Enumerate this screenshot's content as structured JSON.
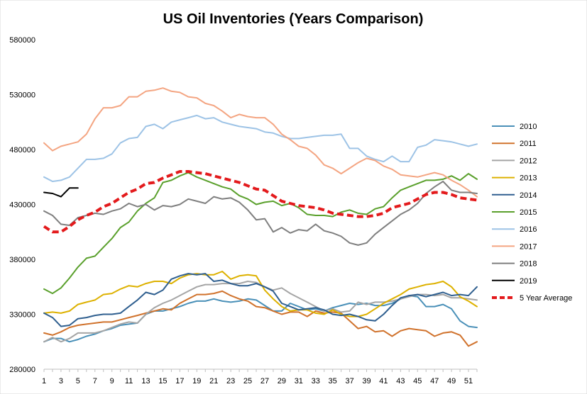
{
  "chart_data": {
    "type": "line",
    "title": "US Oil Inventories (Years Comparison)",
    "xlabel": "",
    "ylabel": "",
    "ylim": [
      280000,
      580000
    ],
    "y_ticks": [
      "280000",
      "330000",
      "380000",
      "430000",
      "480000",
      "530000",
      "580000"
    ],
    "x_ticks": [
      "1",
      "3",
      "5",
      "7",
      "9",
      "11",
      "13",
      "15",
      "17",
      "19",
      "21",
      "23",
      "25",
      "27",
      "29",
      "31",
      "33",
      "35",
      "37",
      "39",
      "41",
      "43",
      "45",
      "47",
      "49",
      "51"
    ],
    "grid": false,
    "legend_position": "right",
    "x": [
      1,
      2,
      3,
      4,
      5,
      6,
      7,
      8,
      9,
      10,
      11,
      12,
      13,
      14,
      15,
      16,
      17,
      18,
      19,
      20,
      21,
      22,
      23,
      24,
      25,
      26,
      27,
      28,
      29,
      30,
      31,
      32,
      33,
      34,
      35,
      36,
      37,
      38,
      39,
      40,
      41,
      42,
      43,
      44,
      45,
      46,
      47,
      48,
      49,
      50,
      51,
      52
    ],
    "series": [
      {
        "name": "2010",
        "color": "#4a90b8",
        "width": 2,
        "dash": false,
        "values": [
          305000,
          308000,
          308000,
          305000,
          307000,
          310000,
          312000,
          315000,
          317000,
          320000,
          321000,
          322000,
          330000,
          333000,
          333000,
          335000,
          337000,
          340000,
          342000,
          342000,
          344000,
          342000,
          341000,
          342000,
          344000,
          343000,
          338000,
          333000,
          333000,
          340000,
          337000,
          334000,
          335000,
          333000,
          336000,
          338000,
          340000,
          339000,
          340000,
          338000,
          338000,
          340000,
          344000,
          347000,
          346000,
          337000,
          337000,
          339000,
          335000,
          324000,
          319000,
          318000
        ]
      },
      {
        "name": "2011",
        "color": "#d0722c",
        "width": 2,
        "dash": false,
        "values": [
          313000,
          311000,
          314000,
          318000,
          320000,
          321000,
          322000,
          323000,
          323000,
          325000,
          327000,
          329000,
          331000,
          333000,
          335000,
          334000,
          340000,
          344000,
          348000,
          348000,
          349000,
          351000,
          347000,
          344000,
          342000,
          337000,
          336000,
          333000,
          330000,
          332000,
          332000,
          328000,
          333000,
          331000,
          332000,
          331000,
          324000,
          317000,
          319000,
          314000,
          315000,
          310000,
          315000,
          317000,
          316000,
          315000,
          310000,
          313000,
          314000,
          311000,
          301000,
          305000
        ]
      },
      {
        "name": "2012",
        "color": "#a5a5a5",
        "width": 2,
        "dash": false,
        "values": [
          305000,
          309000,
          305000,
          308000,
          313000,
          313000,
          313000,
          315000,
          318000,
          321000,
          323000,
          322000,
          330000,
          336000,
          340000,
          343000,
          347000,
          351000,
          355000,
          357000,
          357000,
          358000,
          358000,
          358000,
          360000,
          359000,
          355000,
          352000,
          354000,
          349000,
          345000,
          341000,
          337000,
          333000,
          335000,
          332000,
          333000,
          341000,
          339000,
          341000,
          341000,
          342000,
          344000,
          346000,
          348000,
          348000,
          347000,
          348000,
          345000,
          345000,
          344000,
          343000
        ]
      },
      {
        "name": "2013",
        "color": "#ddb100",
        "width": 2,
        "dash": false,
        "values": [
          331000,
          332000,
          331000,
          333000,
          339000,
          341000,
          343000,
          348000,
          349000,
          353000,
          356000,
          355000,
          358000,
          360000,
          360000,
          358000,
          363000,
          366000,
          367000,
          366000,
          366000,
          369000,
          362000,
          365000,
          366000,
          365000,
          352000,
          344000,
          337000,
          333000,
          334000,
          334000,
          331000,
          330000,
          334000,
          330000,
          328000,
          328000,
          330000,
          335000,
          340000,
          344000,
          348000,
          353000,
          355000,
          357000,
          358000,
          360000,
          355000,
          346000,
          342000,
          337000
        ]
      },
      {
        "name": "2014",
        "color": "#2f5f8f",
        "width": 2,
        "dash": false,
        "values": [
          331000,
          327000,
          319000,
          320000,
          326000,
          327000,
          329000,
          330000,
          330000,
          331000,
          337000,
          343000,
          350000,
          348000,
          352000,
          362000,
          365000,
          367000,
          366000,
          367000,
          360000,
          361000,
          358000,
          356000,
          356000,
          358000,
          355000,
          351000,
          340000,
          337000,
          334000,
          335000,
          336000,
          334000,
          330000,
          329000,
          330000,
          328000,
          325000,
          324000,
          330000,
          338000,
          345000,
          347000,
          348000,
          346000,
          348000,
          350000,
          347000,
          348000,
          347000,
          355000
        ]
      },
      {
        "name": "2015",
        "color": "#5aa02c",
        "width": 2,
        "dash": false,
        "values": [
          353000,
          349000,
          354000,
          363000,
          373000,
          381000,
          383000,
          391000,
          399000,
          409000,
          414000,
          424000,
          431000,
          436000,
          450000,
          452000,
          456000,
          459000,
          455000,
          452000,
          449000,
          446000,
          444000,
          438000,
          435000,
          430000,
          432000,
          433000,
          429000,
          431000,
          427000,
          421000,
          420000,
          420000,
          419000,
          423000,
          425000,
          422000,
          421000,
          426000,
          428000,
          436000,
          443000,
          446000,
          449000,
          452000,
          452000,
          453000,
          456000,
          452000,
          458000,
          453000
        ]
      },
      {
        "name": "2016",
        "color": "#9dc3e6",
        "width": 2,
        "dash": false,
        "values": [
          455000,
          451000,
          452000,
          455000,
          463000,
          471000,
          471000,
          472000,
          476000,
          486000,
          490000,
          491000,
          501000,
          503000,
          499000,
          505000,
          507000,
          509000,
          511000,
          508000,
          509000,
          505000,
          503000,
          501000,
          500000,
          499000,
          496000,
          495000,
          492000,
          490000,
          490000,
          491000,
          492000,
          493000,
          493000,
          494000,
          481000,
          481000,
          474000,
          471000,
          469000,
          474000,
          469000,
          469000,
          482000,
          484000,
          489000,
          488000,
          487000,
          485000,
          483000,
          485000
        ]
      },
      {
        "name": "2017",
        "color": "#f4a582",
        "width": 2,
        "dash": false,
        "values": [
          486000,
          479000,
          483000,
          485000,
          487000,
          494000,
          508000,
          518000,
          518000,
          520000,
          528000,
          528000,
          533000,
          534000,
          536000,
          533000,
          532000,
          528000,
          527000,
          522000,
          520000,
          515000,
          509000,
          512000,
          510000,
          509000,
          509000,
          503000,
          494000,
          489000,
          483000,
          481000,
          475000,
          466000,
          463000,
          458000,
          463000,
          468000,
          472000,
          470000,
          465000,
          462000,
          457000,
          456000,
          455000,
          457000,
          459000,
          457000,
          452000,
          448000,
          443000,
          437000
        ]
      },
      {
        "name": "2018",
        "color": "#7f7f7f",
        "width": 2,
        "dash": false,
        "values": [
          424000,
          420000,
          412000,
          411000,
          418000,
          420000,
          422000,
          421000,
          424000,
          426000,
          431000,
          428000,
          430000,
          425000,
          429000,
          428000,
          430000,
          435000,
          433000,
          431000,
          437000,
          435000,
          436000,
          432000,
          425000,
          416000,
          417000,
          405000,
          409000,
          404000,
          407000,
          406000,
          412000,
          406000,
          404000,
          401000,
          395000,
          393000,
          395000,
          403000,
          409000,
          415000,
          421000,
          425000,
          431000,
          440000,
          446000,
          451000,
          443000,
          441000,
          441000,
          440000
        ]
      },
      {
        "name": "2019",
        "color": "#000000",
        "width": 2,
        "dash": false,
        "values": [
          441000,
          440000,
          437000,
          445000,
          445000,
          null,
          null,
          null,
          null,
          null,
          null,
          null,
          null,
          null,
          null,
          null,
          null,
          null,
          null,
          null,
          null,
          null,
          null,
          null,
          null,
          null,
          null,
          null,
          null,
          null,
          null,
          null,
          null,
          null,
          null,
          null,
          null,
          null,
          null,
          null,
          null,
          null,
          null,
          null,
          null,
          null,
          null,
          null,
          null,
          null,
          null,
          null
        ]
      },
      {
        "name": "5 Year Average",
        "color": "#e31a1c",
        "width": 4,
        "dash": true,
        "values": [
          410000,
          405000,
          405000,
          410000,
          416000,
          420000,
          423000,
          428000,
          431000,
          436000,
          441000,
          444000,
          449000,
          450000,
          454000,
          457000,
          460000,
          460000,
          459000,
          458000,
          456000,
          454000,
          452000,
          450000,
          447000,
          444000,
          443000,
          438000,
          433000,
          431000,
          429000,
          428000,
          427000,
          425000,
          422000,
          421000,
          420000,
          419000,
          419000,
          420000,
          422000,
          427000,
          429000,
          431000,
          435000,
          439000,
          441000,
          441000,
          439000,
          436000,
          435000,
          434000
        ]
      }
    ]
  }
}
